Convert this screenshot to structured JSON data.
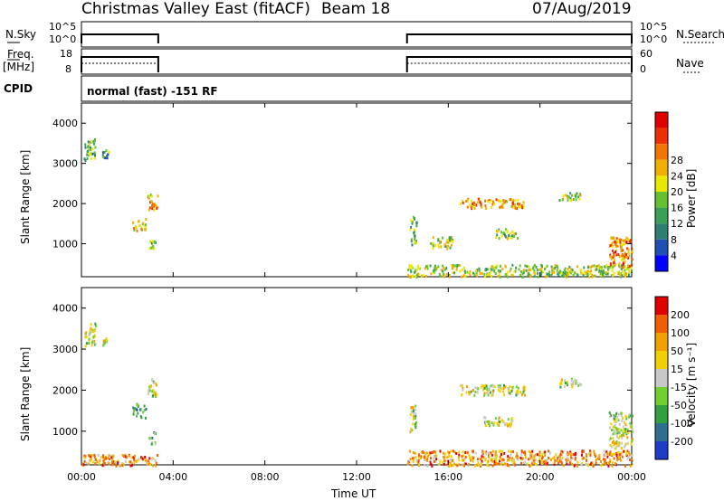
{
  "header": {
    "station": "Christmas Valley East (fitACF)",
    "beam": "Beam 18",
    "date": "07/Aug/2019"
  },
  "strip_labels": {
    "nsky": "N.Sky",
    "nsearch": "N.Search",
    "freq_top": "Freq.",
    "freq_unit": "[MHz]",
    "nave": "Nave",
    "cpid": "CPID",
    "cpid_value": "normal (fast) -151 RF",
    "nsky_ticks": [
      "10^5",
      "10^0"
    ],
    "nsearch_ticks": [
      "10^5",
      "10^0"
    ],
    "freq_ticks": [
      "18",
      "8"
    ],
    "nave_ticks": [
      "60",
      "0"
    ]
  },
  "chart_data": [
    {
      "type": "heatmap",
      "name": "power",
      "ylabel": "Slant Range [km]",
      "xlabel": "Time UT",
      "x_ticks": [
        "00:00",
        "04:00",
        "08:00",
        "12:00",
        "16:00",
        "20:00",
        "00:00"
      ],
      "y_ticks": [
        1000,
        2000,
        3000,
        4000
      ],
      "ylim": [
        180,
        4500
      ],
      "xlim_hours": [
        0,
        24
      ],
      "colorbar": {
        "label": "Power [dB]",
        "ticks": [
          4,
          8,
          12,
          16,
          20,
          24,
          28
        ],
        "colors": [
          "#0000ff",
          "#1e50b4",
          "#2f7f6e",
          "#3aa055",
          "#66c030",
          "#e8e800",
          "#f0b000",
          "#f07800",
          "#ee3000",
          "#e00000"
        ]
      },
      "observing_hours": [
        [
          0.0,
          3.35
        ],
        [
          14.2,
          24.0
        ]
      ],
      "echo_regions": [
        {
          "t": [
            0.1,
            0.6
          ],
          "r": [
            3100,
            3650
          ],
          "level": 0.35
        },
        {
          "t": [
            0.9,
            1.2
          ],
          "r": [
            3150,
            3350
          ],
          "level": 0.3
        },
        {
          "t": [
            2.2,
            2.8
          ],
          "r": [
            1350,
            1650
          ],
          "level": 0.6
        },
        {
          "t": [
            2.85,
            3.3
          ],
          "r": [
            1850,
            2250
          ],
          "level": 0.65
        },
        {
          "t": [
            2.9,
            3.2
          ],
          "r": [
            900,
            1150
          ],
          "level": 0.4
        },
        {
          "t": [
            14.2,
            24.0
          ],
          "r": [
            200,
            500
          ],
          "level": 0.5
        },
        {
          "t": [
            16.5,
            19.3
          ],
          "r": [
            1900,
            2150
          ],
          "level": 0.7
        },
        {
          "t": [
            15.2,
            16.2
          ],
          "r": [
            900,
            1200
          ],
          "level": 0.5
        },
        {
          "t": [
            18.0,
            19.0
          ],
          "r": [
            1150,
            1400
          ],
          "level": 0.45
        },
        {
          "t": [
            20.8,
            21.8
          ],
          "r": [
            2100,
            2300
          ],
          "level": 0.5
        },
        {
          "t": [
            23.0,
            24.0
          ],
          "r": [
            400,
            1200
          ],
          "level": 0.75
        },
        {
          "t": [
            14.3,
            14.6
          ],
          "r": [
            1000,
            1700
          ],
          "level": 0.35
        }
      ]
    },
    {
      "type": "heatmap",
      "name": "velocity",
      "ylabel": "Slant Range [km]",
      "xlabel": "Time UT",
      "x_ticks": [
        "00:00",
        "04:00",
        "08:00",
        "12:00",
        "16:00",
        "20:00",
        "00:00"
      ],
      "y_ticks": [
        1000,
        2000,
        3000,
        4000
      ],
      "ylim": [
        180,
        4500
      ],
      "xlim_hours": [
        0,
        24
      ],
      "colorbar": {
        "label": "Velocity [m s⁻¹]",
        "ticks": [
          200,
          100,
          50,
          15,
          -15,
          -50,
          -100,
          -200
        ],
        "colors": [
          "#1e3cc8",
          "#2e6e8e",
          "#30a040",
          "#70d030",
          "#c8c8c8",
          "#f0d000",
          "#f0a000",
          "#f06000",
          "#e00000"
        ]
      },
      "observing_hours": [
        [
          0.0,
          3.35
        ],
        [
          14.2,
          24.0
        ]
      ],
      "echo_regions": [
        {
          "t": [
            0.1,
            0.6
          ],
          "r": [
            3100,
            3650
          ],
          "level": 0.5
        },
        {
          "t": [
            0.9,
            1.2
          ],
          "r": [
            3100,
            3350
          ],
          "level": 0.5
        },
        {
          "t": [
            2.2,
            2.8
          ],
          "r": [
            1350,
            1700
          ],
          "level": 0.3
        },
        {
          "t": [
            2.85,
            3.3
          ],
          "r": [
            1850,
            2300
          ],
          "level": 0.5
        },
        {
          "t": [
            2.9,
            3.2
          ],
          "r": [
            700,
            1000
          ],
          "level": 0.3
        },
        {
          "t": [
            0.0,
            3.3
          ],
          "r": [
            180,
            450
          ],
          "level": 0.75
        },
        {
          "t": [
            14.2,
            24.0
          ],
          "r": [
            180,
            550
          ],
          "level": 0.75
        },
        {
          "t": [
            16.5,
            19.3
          ],
          "r": [
            1900,
            2150
          ],
          "level": 0.5
        },
        {
          "t": [
            20.8,
            21.8
          ],
          "r": [
            2100,
            2300
          ],
          "level": 0.5
        },
        {
          "t": [
            23.0,
            24.0
          ],
          "r": [
            600,
            1500
          ],
          "level": 0.5
        },
        {
          "t": [
            14.3,
            14.6
          ],
          "r": [
            1000,
            1700
          ],
          "level": 0.5
        },
        {
          "t": [
            17.5,
            18.8
          ],
          "r": [
            1150,
            1400
          ],
          "level": 0.5
        }
      ]
    }
  ]
}
